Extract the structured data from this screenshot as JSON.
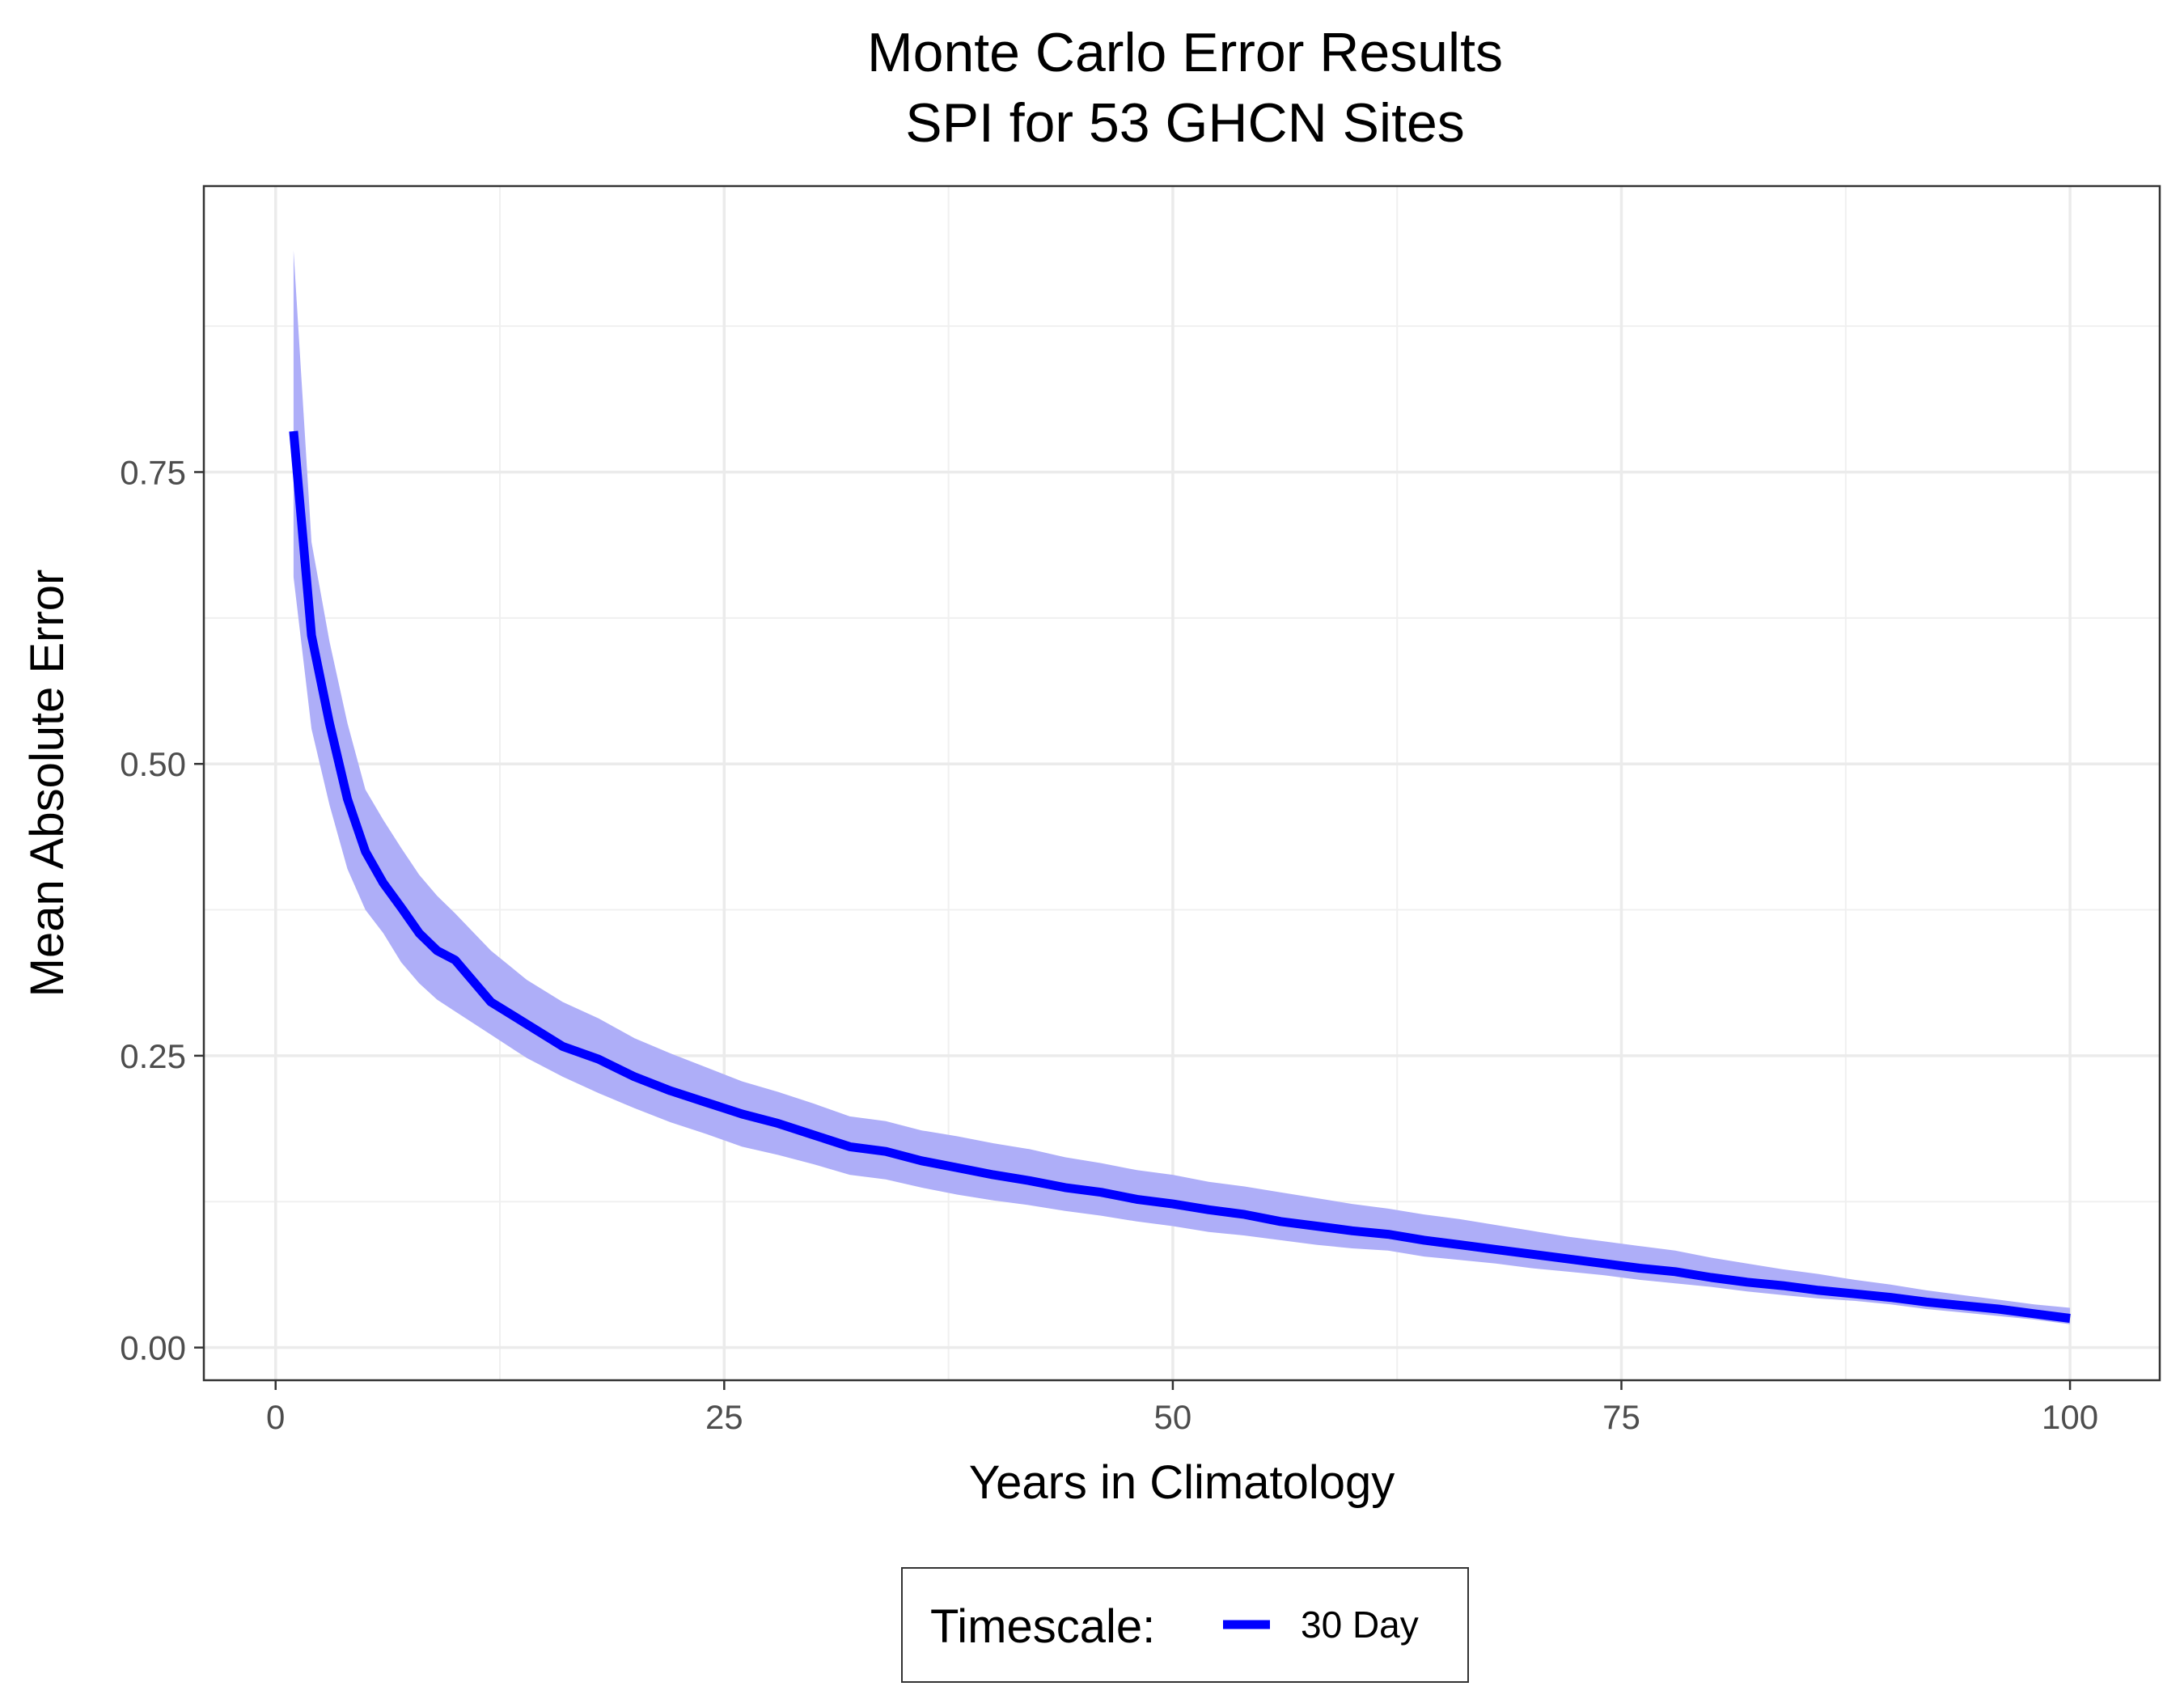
{
  "chart_data": {
    "type": "line",
    "title": "Monte Carlo Error Results",
    "subtitle": "SPI for 53 GHCN Sites",
    "xlabel": "Years in Climatology",
    "ylabel": "Mean Absolute Error",
    "xlim": [
      -4,
      105
    ],
    "ylim": [
      -0.028,
      0.995
    ],
    "x_ticks": [
      0,
      25,
      50,
      75,
      100
    ],
    "x_tick_labels": [
      "0",
      "25",
      "50",
      "75",
      "100"
    ],
    "y_ticks": [
      0,
      0.25,
      0.5,
      0.75
    ],
    "y_tick_labels": [
      "0.00",
      "0.25",
      "0.50",
      "0.75"
    ],
    "x_minor_ticks": [
      12.5,
      37.5,
      62.5,
      87.5
    ],
    "y_minor_ticks": [
      0.125,
      0.375,
      0.625,
      0.875
    ],
    "grid": true,
    "legend_position": "bottom",
    "legend_title": "Timescale:",
    "series": [
      {
        "name": "30 Day",
        "color": "#0000ff",
        "ribbon_color": "#aeaef8",
        "x": [
          1,
          2,
          3,
          4,
          5,
          6,
          7,
          8,
          9,
          10,
          12,
          14,
          16,
          18,
          20,
          22,
          24,
          26,
          28,
          30,
          32,
          34,
          36,
          38,
          40,
          42,
          44,
          46,
          48,
          50,
          52,
          54,
          56,
          58,
          60,
          62,
          64,
          66,
          68,
          70,
          72,
          74,
          76,
          78,
          80,
          82,
          84,
          86,
          88,
          90,
          92,
          94,
          96,
          98,
          100
        ],
        "y": [
          0.785,
          0.61,
          0.535,
          0.47,
          0.425,
          0.398,
          0.377,
          0.355,
          0.34,
          0.332,
          0.296,
          0.277,
          0.258,
          0.247,
          0.232,
          0.22,
          0.21,
          0.2,
          0.192,
          0.182,
          0.172,
          0.168,
          0.16,
          0.154,
          0.148,
          0.143,
          0.137,
          0.133,
          0.127,
          0.123,
          0.118,
          0.114,
          0.108,
          0.104,
          0.1,
          0.097,
          0.092,
          0.088,
          0.084,
          0.08,
          0.076,
          0.072,
          0.068,
          0.065,
          0.06,
          0.056,
          0.053,
          0.049,
          0.046,
          0.043,
          0.039,
          0.036,
          0.033,
          0.029,
          0.025
        ],
        "lower": [
          0.66,
          0.53,
          0.465,
          0.41,
          0.375,
          0.355,
          0.33,
          0.312,
          0.298,
          0.288,
          0.268,
          0.248,
          0.232,
          0.218,
          0.205,
          0.193,
          0.183,
          0.172,
          0.165,
          0.157,
          0.148,
          0.144,
          0.137,
          0.131,
          0.126,
          0.122,
          0.117,
          0.113,
          0.108,
          0.104,
          0.099,
          0.096,
          0.092,
          0.088,
          0.085,
          0.083,
          0.078,
          0.075,
          0.072,
          0.068,
          0.065,
          0.062,
          0.058,
          0.055,
          0.052,
          0.048,
          0.045,
          0.042,
          0.04,
          0.037,
          0.033,
          0.03,
          0.027,
          0.024,
          0.02
        ],
        "upper": [
          0.94,
          0.69,
          0.605,
          0.535,
          0.478,
          0.452,
          0.428,
          0.405,
          0.387,
          0.372,
          0.34,
          0.315,
          0.296,
          0.282,
          0.265,
          0.252,
          0.24,
          0.228,
          0.219,
          0.209,
          0.198,
          0.194,
          0.186,
          0.181,
          0.175,
          0.17,
          0.163,
          0.158,
          0.152,
          0.148,
          0.142,
          0.138,
          0.133,
          0.128,
          0.123,
          0.119,
          0.114,
          0.11,
          0.105,
          0.1,
          0.095,
          0.091,
          0.087,
          0.083,
          0.077,
          0.072,
          0.067,
          0.063,
          0.058,
          0.054,
          0.049,
          0.045,
          0.041,
          0.037,
          0.034
        ]
      }
    ]
  }
}
